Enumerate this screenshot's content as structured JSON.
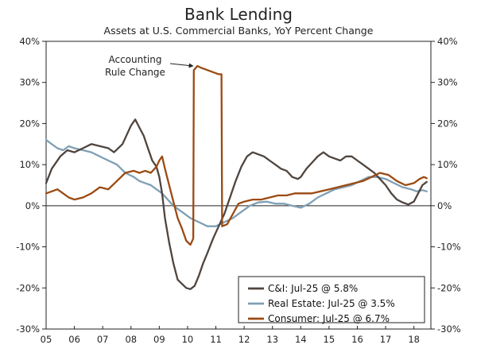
{
  "chart_data": {
    "type": "line",
    "title": "Bank Lending",
    "subtitle": "Assets at U.S. Commercial Banks, YoY Percent Change",
    "xlabel": "",
    "ylabel": "",
    "x_ticks": [
      "05",
      "06",
      "07",
      "08",
      "09",
      "10",
      "11",
      "12",
      "13",
      "14",
      "15",
      "16",
      "17",
      "18"
    ],
    "x_range": [
      2005.0,
      2018.6
    ],
    "ylim": [
      -30,
      40
    ],
    "y_ticks": [
      40,
      30,
      20,
      10,
      0,
      -10,
      -20,
      -30
    ],
    "y_tick_labels": [
      "40%",
      "30%",
      "20%",
      "10%",
      "0%",
      "-10%",
      "-20%",
      "-30%"
    ],
    "grid": false,
    "legend_position": "bottom-right",
    "annotation": {
      "line1": "Accounting",
      "line2": "Rule Change",
      "point": [
        2010.3,
        34
      ]
    },
    "series": [
      {
        "name": "C&I: Jul-25 @ 5.8%",
        "color": "#4f453f",
        "points": [
          [
            2005.0,
            5.5
          ],
          [
            2005.2,
            9.0
          ],
          [
            2005.5,
            12.0
          ],
          [
            2005.75,
            13.5
          ],
          [
            2006.0,
            13.0
          ],
          [
            2006.3,
            14.0
          ],
          [
            2006.6,
            15.0
          ],
          [
            2006.9,
            14.5
          ],
          [
            2007.2,
            14.0
          ],
          [
            2007.4,
            13.0
          ],
          [
            2007.7,
            15.0
          ],
          [
            2007.9,
            18.0
          ],
          [
            2008.0,
            19.5
          ],
          [
            2008.15,
            21.0
          ],
          [
            2008.3,
            19.0
          ],
          [
            2008.45,
            17.0
          ],
          [
            2008.6,
            14.0
          ],
          [
            2008.75,
            11.0
          ],
          [
            2008.9,
            9.5
          ],
          [
            2009.0,
            7.0
          ],
          [
            2009.1,
            3.0
          ],
          [
            2009.2,
            -3.0
          ],
          [
            2009.35,
            -9.0
          ],
          [
            2009.5,
            -14.0
          ],
          [
            2009.65,
            -18.0
          ],
          [
            2009.8,
            -19.0
          ],
          [
            2009.95,
            -20.0
          ],
          [
            2010.1,
            -20.3
          ],
          [
            2010.25,
            -19.5
          ],
          [
            2010.4,
            -17.0
          ],
          [
            2010.55,
            -14.0
          ],
          [
            2010.7,
            -11.5
          ],
          [
            2010.9,
            -8.0
          ],
          [
            2011.1,
            -5.0
          ],
          [
            2011.3,
            -2.0
          ],
          [
            2011.5,
            2.0
          ],
          [
            2011.7,
            6.0
          ],
          [
            2011.9,
            9.5
          ],
          [
            2012.1,
            12.0
          ],
          [
            2012.3,
            13.0
          ],
          [
            2012.5,
            12.5
          ],
          [
            2012.7,
            12.0
          ],
          [
            2012.9,
            11.0
          ],
          [
            2013.1,
            10.0
          ],
          [
            2013.3,
            9.0
          ],
          [
            2013.5,
            8.5
          ],
          [
            2013.7,
            7.0
          ],
          [
            2013.9,
            6.5
          ],
          [
            2014.0,
            7.0
          ],
          [
            2014.2,
            9.0
          ],
          [
            2014.4,
            10.5
          ],
          [
            2014.6,
            12.0
          ],
          [
            2014.8,
            13.0
          ],
          [
            2015.0,
            12.0
          ],
          [
            2015.2,
            11.5
          ],
          [
            2015.4,
            11.0
          ],
          [
            2015.6,
            12.0
          ],
          [
            2015.8,
            12.0
          ],
          [
            2016.0,
            11.0
          ],
          [
            2016.2,
            10.0
          ],
          [
            2016.4,
            9.0
          ],
          [
            2016.6,
            8.0
          ],
          [
            2016.8,
            6.5
          ],
          [
            2017.0,
            5.0
          ],
          [
            2017.2,
            3.0
          ],
          [
            2017.4,
            1.5
          ],
          [
            2017.6,
            0.8
          ],
          [
            2017.8,
            0.3
          ],
          [
            2018.0,
            1.0
          ],
          [
            2018.15,
            3.0
          ],
          [
            2018.3,
            5.0
          ],
          [
            2018.45,
            5.8
          ]
        ]
      },
      {
        "name": "Real Estate: Jul-25 @ 3.5%",
        "color": "#7f9fb4",
        "points": [
          [
            2005.0,
            16.0
          ],
          [
            2005.2,
            15.0
          ],
          [
            2005.4,
            14.0
          ],
          [
            2005.6,
            13.5
          ],
          [
            2005.8,
            14.5
          ],
          [
            2006.0,
            14.0
          ],
          [
            2006.3,
            13.5
          ],
          [
            2006.6,
            13.0
          ],
          [
            2006.9,
            12.0
          ],
          [
            2007.2,
            11.0
          ],
          [
            2007.5,
            10.0
          ],
          [
            2007.8,
            8.0
          ],
          [
            2008.1,
            7.0
          ],
          [
            2008.3,
            6.0
          ],
          [
            2008.5,
            5.5
          ],
          [
            2008.7,
            5.0
          ],
          [
            2008.9,
            4.0
          ],
          [
            2009.1,
            3.0
          ],
          [
            2009.3,
            1.5
          ],
          [
            2009.5,
            0.0
          ],
          [
            2009.8,
            -1.5
          ],
          [
            2010.1,
            -3.0
          ],
          [
            2010.4,
            -4.0
          ],
          [
            2010.7,
            -5.0
          ],
          [
            2011.0,
            -5.0
          ],
          [
            2011.3,
            -4.0
          ],
          [
            2011.6,
            -3.0
          ],
          [
            2011.9,
            -1.5
          ],
          [
            2012.2,
            0.0
          ],
          [
            2012.5,
            0.8
          ],
          [
            2012.8,
            1.0
          ],
          [
            2013.1,
            0.5
          ],
          [
            2013.4,
            0.5
          ],
          [
            2013.7,
            0.0
          ],
          [
            2014.0,
            -0.5
          ],
          [
            2014.3,
            0.5
          ],
          [
            2014.6,
            2.0
          ],
          [
            2014.9,
            3.0
          ],
          [
            2015.2,
            4.0
          ],
          [
            2015.5,
            4.5
          ],
          [
            2015.8,
            5.0
          ],
          [
            2016.1,
            6.0
          ],
          [
            2016.4,
            7.0
          ],
          [
            2016.7,
            7.0
          ],
          [
            2017.0,
            6.5
          ],
          [
            2017.3,
            5.5
          ],
          [
            2017.6,
            4.5
          ],
          [
            2017.9,
            4.0
          ],
          [
            2018.1,
            3.5
          ],
          [
            2018.3,
            3.8
          ],
          [
            2018.45,
            3.5
          ]
        ]
      },
      {
        "name": "Consumer: Jul-25 @ 6.7%",
        "color": "#9b4a12",
        "points": [
          [
            2005.0,
            3.0
          ],
          [
            2005.2,
            3.5
          ],
          [
            2005.4,
            4.0
          ],
          [
            2005.6,
            3.0
          ],
          [
            2005.8,
            2.0
          ],
          [
            2006.0,
            1.5
          ],
          [
            2006.3,
            2.0
          ],
          [
            2006.6,
            3.0
          ],
          [
            2006.9,
            4.5
          ],
          [
            2007.2,
            4.0
          ],
          [
            2007.5,
            6.0
          ],
          [
            2007.8,
            8.0
          ],
          [
            2008.1,
            8.5
          ],
          [
            2008.3,
            8.0
          ],
          [
            2008.5,
            8.5
          ],
          [
            2008.7,
            8.0
          ],
          [
            2008.9,
            9.5
          ],
          [
            2009.0,
            11.0
          ],
          [
            2009.1,
            12.0
          ],
          [
            2009.2,
            9.0
          ],
          [
            2009.35,
            5.0
          ],
          [
            2009.5,
            1.0
          ],
          [
            2009.65,
            -3.0
          ],
          [
            2009.8,
            -5.5
          ],
          [
            2009.95,
            -8.5
          ],
          [
            2010.1,
            -9.5
          ],
          [
            2010.2,
            -8.0
          ],
          [
            2010.22,
            33.0
          ],
          [
            2010.35,
            34.0
          ],
          [
            2010.5,
            33.5
          ],
          [
            2010.7,
            33.0
          ],
          [
            2010.9,
            32.5
          ],
          [
            2011.1,
            32.0
          ],
          [
            2011.2,
            32.0
          ],
          [
            2011.22,
            -5.0
          ],
          [
            2011.4,
            -4.5
          ],
          [
            2011.6,
            -2.0
          ],
          [
            2011.8,
            0.5
          ],
          [
            2012.0,
            1.0
          ],
          [
            2012.3,
            1.5
          ],
          [
            2012.6,
            1.5
          ],
          [
            2012.9,
            2.0
          ],
          [
            2013.2,
            2.5
          ],
          [
            2013.5,
            2.5
          ],
          [
            2013.8,
            3.0
          ],
          [
            2014.1,
            3.0
          ],
          [
            2014.4,
            3.0
          ],
          [
            2014.7,
            3.5
          ],
          [
            2015.0,
            4.0
          ],
          [
            2015.3,
            4.5
          ],
          [
            2015.6,
            5.0
          ],
          [
            2015.9,
            5.5
          ],
          [
            2016.2,
            6.0
          ],
          [
            2016.5,
            7.0
          ],
          [
            2016.8,
            8.0
          ],
          [
            2017.1,
            7.5
          ],
          [
            2017.4,
            6.0
          ],
          [
            2017.7,
            5.0
          ],
          [
            2018.0,
            5.5
          ],
          [
            2018.2,
            6.5
          ],
          [
            2018.35,
            7.0
          ],
          [
            2018.45,
            6.7
          ]
        ]
      }
    ]
  }
}
